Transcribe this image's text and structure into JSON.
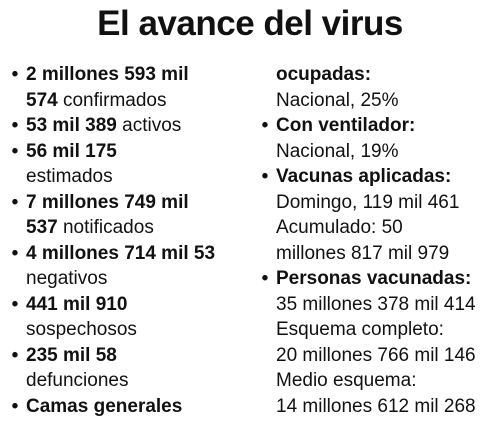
{
  "title": "El avance del virus",
  "bullet_symbol": "•",
  "left_column": [
    {
      "bold": "2 millones 593 mil",
      "bold2": "574",
      "regular": "confirmados"
    },
    {
      "bold": "53 mil 389",
      "regular": "activos"
    },
    {
      "bold": "56 mil 175",
      "regular": "estimados"
    },
    {
      "bold": "7 millones 749 mil",
      "bold2": "537",
      "regular": "notificados"
    },
    {
      "bold": "4 millones 714 mil 53",
      "regular": "negativos"
    },
    {
      "bold": "441 mil 910",
      "regular": "sospechosos"
    },
    {
      "bold": "235 mil 58",
      "regular": "defunciones"
    },
    {
      "bold": "Camas generales"
    }
  ],
  "right_column": {
    "camas_cont_bold": "ocupadas:",
    "camas_value": "Nacional, 25%",
    "ventilador_label": "Con ventilador:",
    "ventilador_value": "Nacional, 19%",
    "vacunas_label": "Vacunas aplicadas:",
    "vacunas_domingo": "Domingo, 119 mil 461",
    "vacunas_acumulado_1": "Acumulado: 50",
    "vacunas_acumulado_2": "millones 817 mil 979",
    "personas_label": "Personas vacunadas:",
    "personas_total": "35 millones 378 mil 414",
    "esquema_completo_label": "Esquema completo:",
    "esquema_completo_value": "20 millones 766 mil 146",
    "medio_esquema_label": "Medio esquema:",
    "medio_esquema_value": "14 millones 612 mil 268"
  }
}
